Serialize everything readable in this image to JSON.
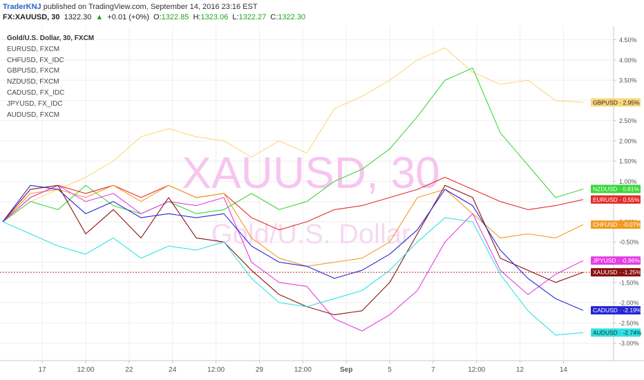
{
  "header": {
    "publisher": "TraderKNJ",
    "published_text": "published on TradingView.com, September 14, 2016 23:16 EST",
    "symbol": "FX:XAUUSD, 30",
    "last": "1322.30",
    "change_arrow": "▲",
    "change": "+0.01 (+0%)",
    "o_label": "O:",
    "o_value": "1322.85",
    "h_label": "H:",
    "h_value": "1323.06",
    "l_label": "L:",
    "l_value": "1322.27",
    "c_label": "C:",
    "c_value": "1322.30"
  },
  "legend": {
    "main": "Gold/U.S. Dollar, 30, FXCM",
    "items": [
      "EURUSD, FXCM",
      "CHFUSD, FX_IDC",
      "GBPUSD, FXCM",
      "NZDUSD, FXCM",
      "CADUSD, FX_IDC",
      "JPYUSD, FX_IDC",
      "AUDUSD, FXCM"
    ]
  },
  "watermark": {
    "main": "XAUUSD, 30",
    "sub": "Gold/U.S. Dollar"
  },
  "chart_data": {
    "type": "line",
    "title": "Gold/U.S. Dollar, 30, FXCM",
    "ylim": [
      -3.4,
      4.8
    ],
    "yticks": [
      "4.50%",
      "4.00%",
      "3.50%",
      "3.00%",
      "2.50%",
      "2.00%",
      "1.50%",
      "1.00%",
      "0.50%",
      "0.00%",
      "-0.50%",
      "-1.00%",
      "-1.50%",
      "-2.00%",
      "-2.50%",
      "-3.00%"
    ],
    "ytick_values": [
      4.5,
      4.0,
      3.5,
      3.0,
      2.5,
      2.0,
      1.5,
      1.0,
      0.5,
      0.0,
      -0.5,
      -1.0,
      -1.5,
      -2.0,
      -2.5,
      -3.0
    ],
    "xticks": [
      "17",
      "12:00",
      "22",
      "24",
      "12:00",
      "29",
      "12:00",
      "Sep",
      "5",
      "7",
      "12:00",
      "12",
      "14"
    ],
    "xtick_positions": [
      1.0,
      2.1,
      3.2,
      4.3,
      5.4,
      6.5,
      7.6,
      8.7,
      9.8,
      10.9,
      12.0,
      13.1,
      14.2
    ],
    "xlim": [
      0,
      15.4
    ],
    "grid": true,
    "legend_position": "top-left",
    "x": [
      0,
      0.7,
      1.4,
      2.1,
      2.8,
      3.5,
      4.2,
      4.9,
      5.6,
      6.3,
      7.0,
      7.7,
      8.4,
      9.1,
      9.8,
      10.5,
      11.2,
      11.9,
      12.6,
      13.3,
      14.0,
      14.7
    ],
    "series": [
      {
        "name": "GBPUSD",
        "color": "#fbd77d",
        "last_label": "2.95%",
        "values": [
          0.0,
          0.5,
          0.8,
          1.1,
          1.5,
          2.1,
          2.3,
          2.1,
          2.0,
          1.6,
          2.0,
          1.7,
          2.8,
          3.1,
          3.5,
          4.0,
          4.3,
          3.7,
          3.4,
          3.5,
          3.0,
          2.95
        ]
      },
      {
        "name": "NZDUSD",
        "color": "#39d739",
        "last_label": "0.81%",
        "values": [
          0.0,
          0.5,
          0.3,
          0.9,
          0.4,
          0.2,
          0.5,
          0.2,
          0.3,
          0.7,
          0.3,
          0.5,
          1.0,
          1.3,
          1.8,
          2.6,
          3.5,
          3.8,
          2.2,
          1.4,
          0.6,
          0.81
        ]
      },
      {
        "name": "EURUSD",
        "color": "#e52b2b",
        "last_label": "0.55%",
        "values": [
          0.0,
          0.6,
          0.9,
          0.7,
          0.9,
          0.6,
          0.9,
          0.6,
          0.7,
          0.1,
          -0.2,
          0.0,
          0.3,
          0.4,
          0.6,
          0.8,
          1.1,
          0.8,
          0.5,
          0.3,
          0.4,
          0.55
        ]
      },
      {
        "name": "CHFUSD",
        "color": "#f29a1f",
        "last_label": "-0.07%",
        "values": [
          0.0,
          0.7,
          0.8,
          0.6,
          0.9,
          0.5,
          0.9,
          0.6,
          0.7,
          -0.4,
          -0.9,
          -1.1,
          -1.0,
          -0.9,
          -0.5,
          0.6,
          0.8,
          0.2,
          -0.4,
          -0.3,
          -0.4,
          -0.07
        ]
      },
      {
        "name": "JPYUSD",
        "color": "#e53de5",
        "last_label": "-0.96%",
        "values": [
          0.0,
          0.6,
          0.9,
          0.5,
          0.7,
          0.2,
          0.5,
          0.4,
          0.6,
          -1.0,
          -1.5,
          -1.6,
          -2.4,
          -2.7,
          -2.3,
          -1.7,
          -0.5,
          0.2,
          -1.2,
          -1.8,
          -1.3,
          -0.96
        ]
      },
      {
        "name": "XAUUSD",
        "color": "#8b1010",
        "last_label": "-1.25%",
        "values": [
          0.0,
          0.8,
          0.9,
          -0.3,
          0.3,
          -0.4,
          0.6,
          -0.4,
          -0.5,
          -1.2,
          -1.8,
          -2.1,
          -2.3,
          -2.2,
          -1.5,
          -0.3,
          0.9,
          0.6,
          -0.9,
          -1.2,
          -1.5,
          -1.25
        ]
      },
      {
        "name": "CADUSD",
        "color": "#2424d6",
        "last_label": "-2.19%",
        "values": [
          0.0,
          0.9,
          0.8,
          0.2,
          0.5,
          0.1,
          0.2,
          0.1,
          0.2,
          -0.6,
          -1.0,
          -1.1,
          -1.4,
          -1.2,
          -0.8,
          -0.2,
          0.8,
          0.4,
          -0.7,
          -1.4,
          -1.9,
          -2.19
        ]
      },
      {
        "name": "AUDUSD",
        "color": "#2fe2e2",
        "last_label": "-2.74%",
        "values": [
          0.0,
          -0.3,
          -0.6,
          -0.8,
          -0.4,
          -0.9,
          -0.6,
          -0.7,
          -0.5,
          -1.4,
          -2.0,
          -2.1,
          -1.9,
          -1.7,
          -1.2,
          -0.5,
          0.1,
          0.0,
          -1.3,
          -2.2,
          -2.8,
          -2.74
        ]
      }
    ],
    "horizontal_line": {
      "value": -1.25,
      "color": "#b22222",
      "style": "dotted"
    }
  }
}
